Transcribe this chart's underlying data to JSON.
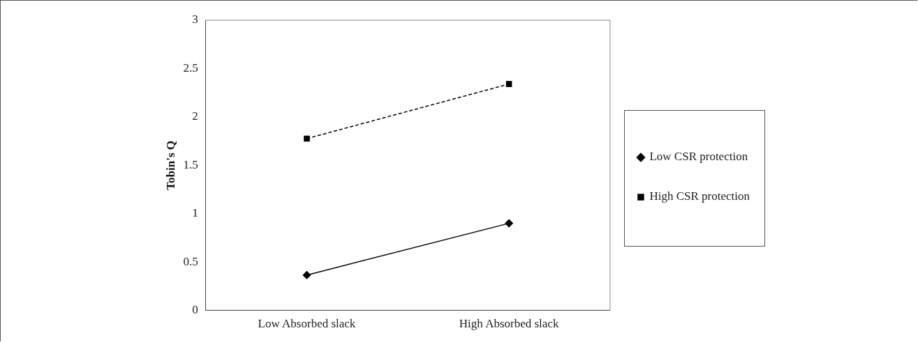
{
  "chart_data": {
    "type": "line",
    "ylabel": "Tobin's Q",
    "categories": [
      "Low Absorbed slack",
      "High Absorbed slack"
    ],
    "series": [
      {
        "name": "Low CSR protection",
        "color": "#000000",
        "values": [
          0.365,
          0.9
        ],
        "marker": "diamond",
        "line_style": "solid"
      },
      {
        "name": "High CSR protection",
        "color": "#000000",
        "values": [
          1.776,
          2.34
        ],
        "marker": "square",
        "line_style": "dashed"
      }
    ],
    "ylim": [
      0,
      3
    ],
    "yticks": [
      0,
      0.5,
      1,
      1.5,
      2,
      2.5,
      3
    ],
    "grid": false,
    "legend": "right"
  }
}
